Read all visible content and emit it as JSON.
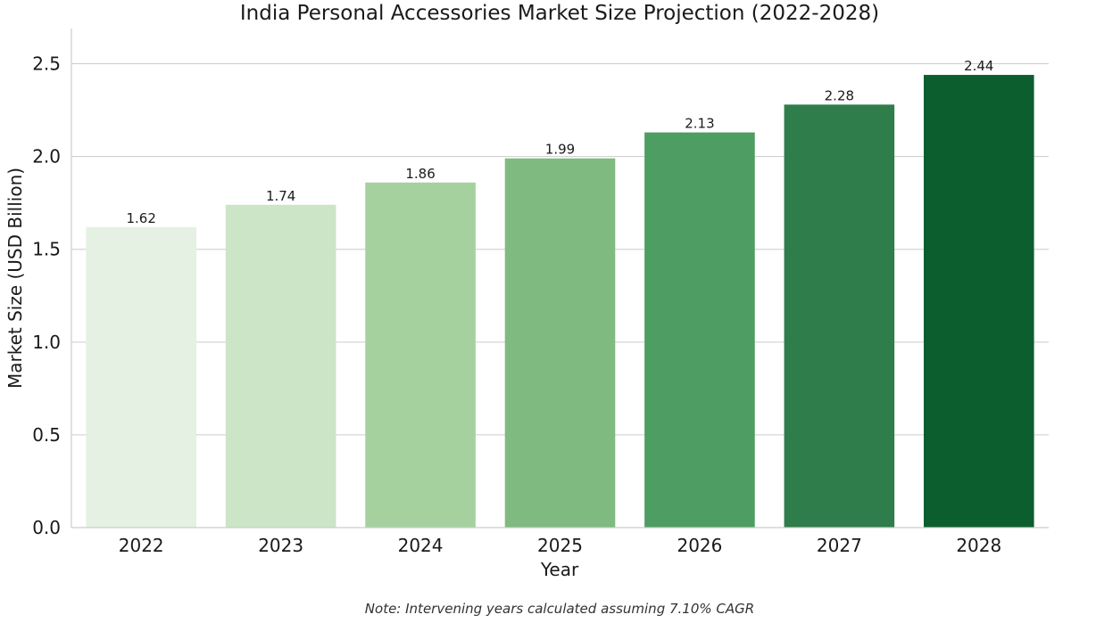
{
  "chart_data": {
    "type": "bar",
    "title": "India Personal Accessories Market Size Projection (2022-2028)",
    "xlabel": "Year",
    "ylabel": "Market Size (USD Billion)",
    "categories": [
      "2022",
      "2023",
      "2024",
      "2025",
      "2026",
      "2027",
      "2028"
    ],
    "values": [
      1.62,
      1.74,
      1.86,
      1.99,
      2.13,
      2.28,
      2.44
    ],
    "value_labels": [
      "1.62",
      "1.74",
      "1.86",
      "1.99",
      "2.13",
      "2.28",
      "2.44"
    ],
    "ylim": [
      0,
      2.69
    ],
    "yticks": [
      0.0,
      0.5,
      1.0,
      1.5,
      2.0,
      2.5
    ],
    "ytick_labels": [
      "0.0",
      "0.5",
      "1.0",
      "1.5",
      "2.0",
      "2.5"
    ],
    "grid": "horizontal",
    "bar_colors": [
      "#e5f1e3",
      "#cbe5c6",
      "#a5d19f",
      "#7fba81",
      "#4e9d63",
      "#2e7d4b",
      "#0d5e2e"
    ],
    "note": "Note: Intervening years calculated assuming 7.10% CAGR"
  }
}
